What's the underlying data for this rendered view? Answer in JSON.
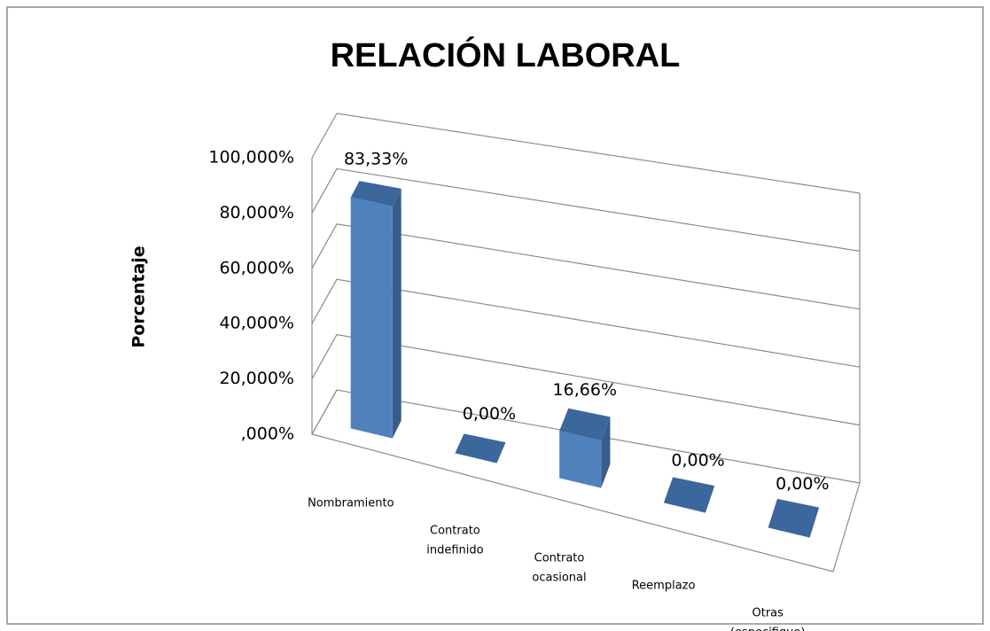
{
  "chart_data": {
    "type": "bar3d",
    "title": "RELACIÓN LABORAL",
    "y_label": "Porcentaje",
    "categories": [
      "Nombramiento",
      "Contrato indefinido",
      "Contrato ocasional",
      "Reemplazo",
      "Otras (especifique)"
    ],
    "values": [
      83.33,
      0,
      16.66,
      0,
      0
    ],
    "value_labels": [
      "83,33%",
      "0,00%",
      "16,66%",
      "0,00%",
      "0,00%"
    ],
    "color": "#4f81bd",
    "ylim": [
      0,
      100
    ],
    "yticks": [
      {
        "value": 0,
        "label": ",000%"
      },
      {
        "value": 20,
        "label": "20,000%"
      },
      {
        "value": 40,
        "label": "40,000%"
      },
      {
        "value": 60,
        "label": "60,000%"
      },
      {
        "value": 80,
        "label": "80,000%"
      },
      {
        "value": 100,
        "label": "100,000%"
      }
    ],
    "grid": true
  }
}
